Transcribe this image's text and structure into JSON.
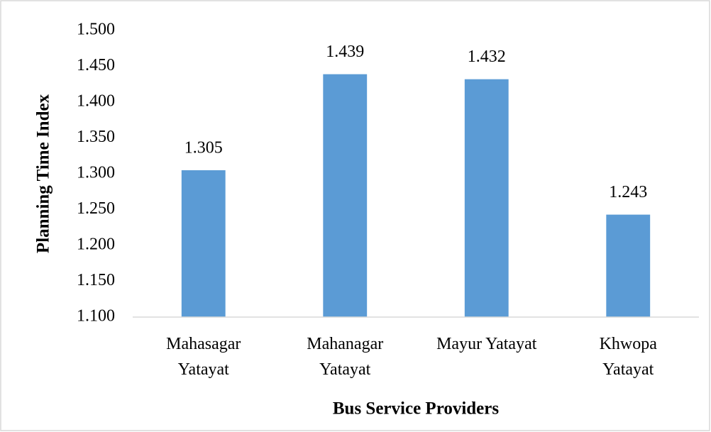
{
  "chart_data": {
    "type": "bar",
    "x_label": "Bus Service Providers",
    "y_label": "Planning Time Index",
    "categories": [
      "Mahasagar Yatayat",
      "Mahanagar Yatayat",
      "Mayur Yatayat",
      "Khwopa Yatayat"
    ],
    "values": [
      1.305,
      1.439,
      1.432,
      1.243
    ],
    "color": "#5b9bd5",
    "ylim": [
      1.1,
      1.5
    ],
    "yticks": [
      {
        "value": 1.1,
        "label": "1.100"
      },
      {
        "value": 1.15,
        "label": "1.150"
      },
      {
        "value": 1.2,
        "label": "1.200"
      },
      {
        "value": 1.25,
        "label": "1.250"
      },
      {
        "value": 1.3,
        "label": "1.300"
      },
      {
        "value": 1.35,
        "label": "1.350"
      },
      {
        "value": 1.4,
        "label": "1.400"
      },
      {
        "value": 1.45,
        "label": "1.450"
      },
      {
        "value": 1.5,
        "label": "1.500"
      }
    ],
    "grid": false
  }
}
